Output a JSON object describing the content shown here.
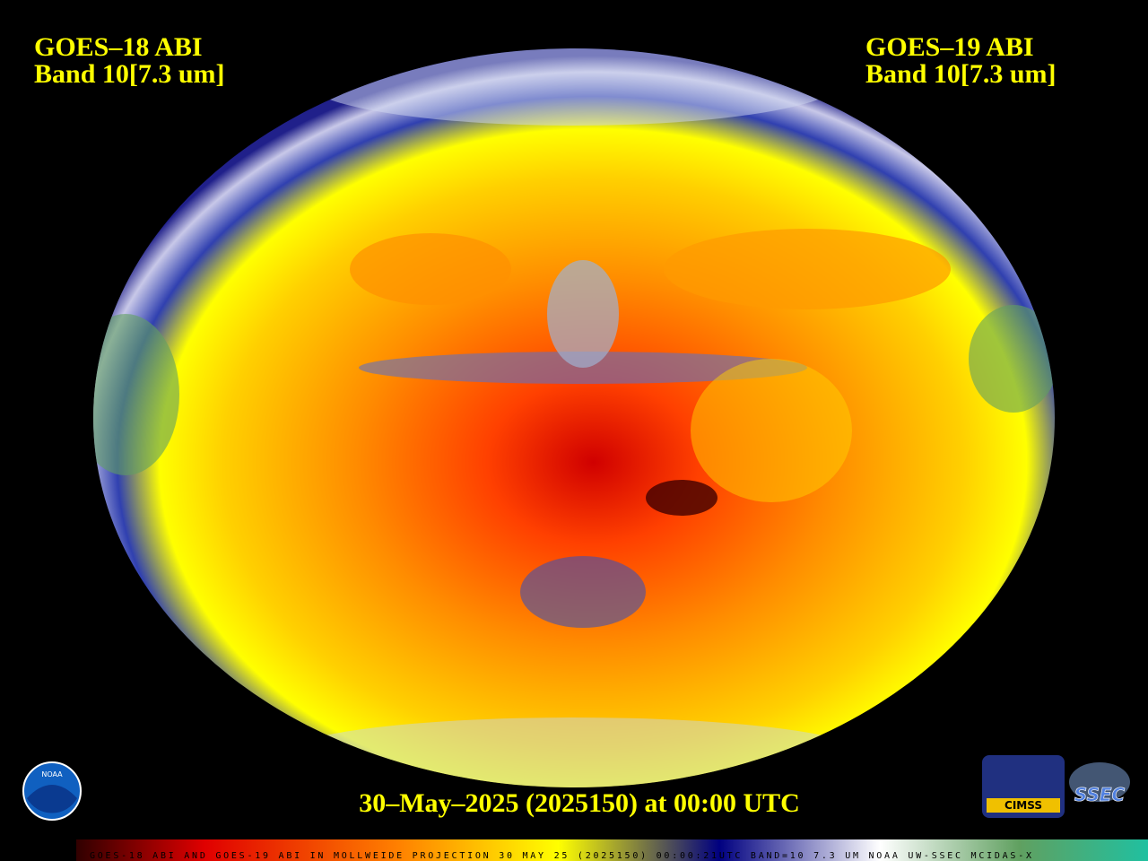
{
  "header": {
    "left": [
      "GOES–18 ABI",
      "Band 10[7.3 um]"
    ],
    "right": [
      "GOES–19 ABI",
      "Band 10[7.3 um]"
    ]
  },
  "timestamp": "30–May–2025 (2025150) at 00:00 UTC",
  "footer": "GOES-18 ABI AND GOES-19 ABI IN MOLLWEIDE PROJECTION 30 MAY 25 (2025150) 00:00:21UTC BAND=10 7.3 UM NOAA UW-SSEC MCIDAS-X",
  "logos": {
    "noaa": "NOAA",
    "cimss": "CIMSS",
    "ssec": "SSEC"
  }
}
